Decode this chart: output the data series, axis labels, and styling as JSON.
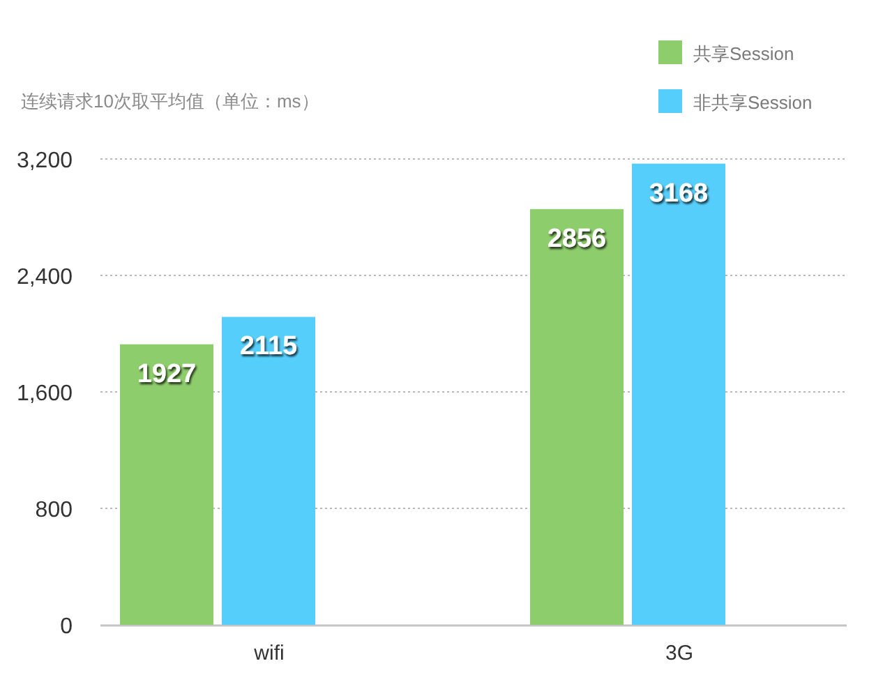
{
  "chart_data": {
    "type": "bar",
    "ylabel": "连续请求10次取平均值（单位：ms）",
    "categories": [
      "wifi",
      "3G"
    ],
    "series": [
      {
        "name": "共享Session",
        "color": "#8ecd6c",
        "values": [
          1927,
          2856
        ]
      },
      {
        "name": "非共享Session",
        "color": "#56cefb",
        "values": [
          2115,
          3168
        ]
      }
    ],
    "ylim": [
      0,
      3200
    ],
    "yticks": [
      0,
      800,
      {
        "value": 1600,
        "label": "1,600"
      },
      {
        "value": 2400,
        "label": "2,400"
      },
      {
        "value": 3200,
        "label": "3,200"
      }
    ],
    "grid": "y",
    "legend": "top right",
    "data_labels": true
  }
}
